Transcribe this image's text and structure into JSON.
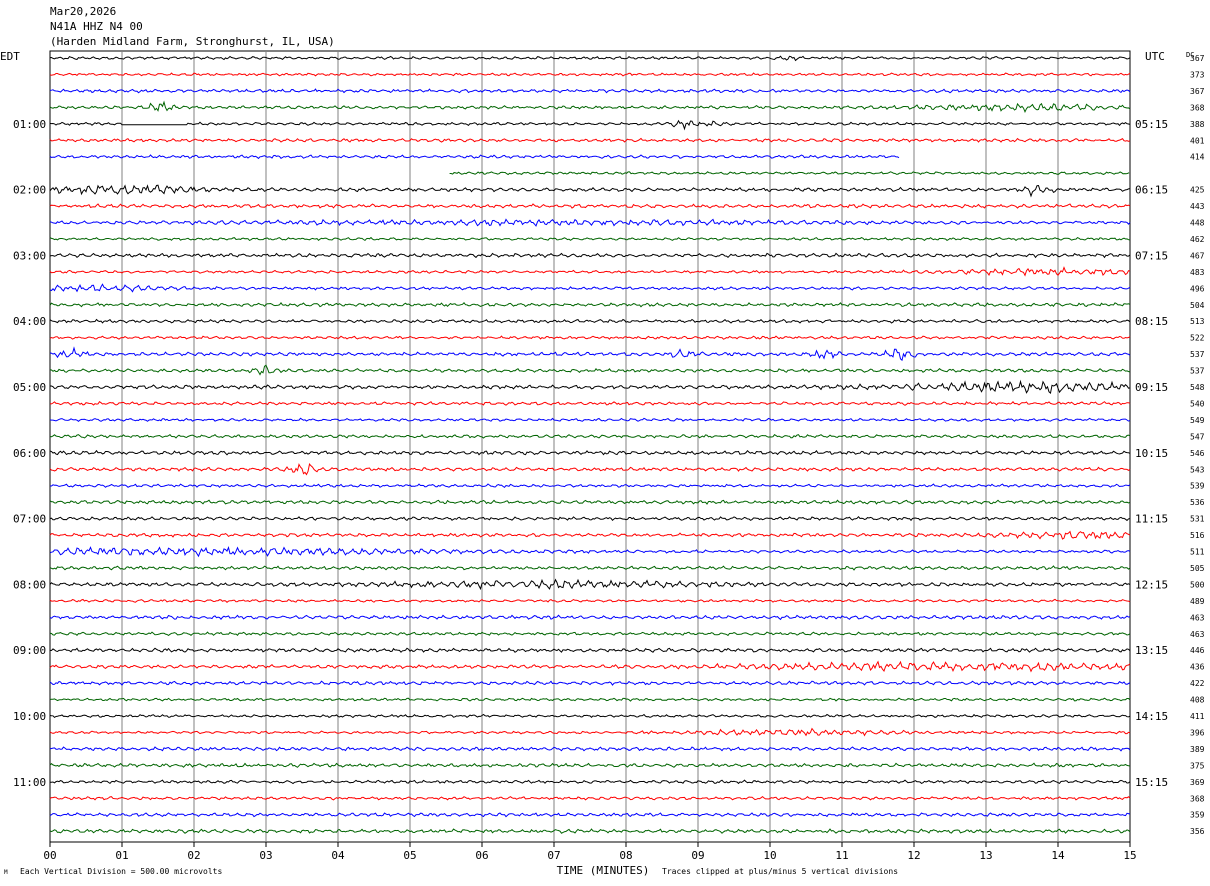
{
  "header": {
    "date": "Mar20,2026",
    "station": "N41A HHZ N4 00",
    "location": "(Harden Midland Farm, Stronghurst, IL, USA)"
  },
  "labels": {
    "left_tz": "EDT",
    "right_tz": "UTC",
    "dc": "DC"
  },
  "footer": {
    "scale": "Each Vertical Division = 500.00 microvolts",
    "clip": "Traces clipped at plus/minus 5 vertical divisions",
    "mark": "M"
  },
  "chart_data": {
    "type": "line",
    "title": "",
    "xlabel": "TIME (MINUTES)",
    "ylabel": "",
    "x_ticks": [
      "00",
      "01",
      "02",
      "03",
      "04",
      "05",
      "06",
      "07",
      "08",
      "09",
      "10",
      "11",
      "12",
      "13",
      "14",
      "15"
    ],
    "xlim": [
      0,
      15
    ],
    "left_hour_labels": [
      "01:00",
      "02:00",
      "03:00",
      "04:00",
      "05:00",
      "06:00",
      "07:00",
      "08:00",
      "09:00",
      "10:00",
      "11:00"
    ],
    "right_hour_labels": [
      "05:15",
      "06:15",
      "07:15",
      "08:15",
      "09:15",
      "10:15",
      "11:15",
      "12:15",
      "13:15",
      "14:15",
      "15:15"
    ],
    "dc_offsets": [
      367,
      373,
      367,
      368,
      388,
      401,
      414,
      null,
      425,
      443,
      448,
      462,
      467,
      483,
      496,
      504,
      513,
      522,
      537,
      537,
      548,
      540,
      549,
      547,
      546,
      543,
      539,
      536,
      531,
      516,
      511,
      505,
      500,
      489,
      463,
      463,
      446,
      436,
      422,
      408,
      411,
      396,
      389,
      375,
      369,
      368,
      359,
      356
    ],
    "trace_colors": [
      "#000000",
      "#ff0000",
      "#0000ff",
      "#006400"
    ],
    "trace_count": 48,
    "minutes_per_trace": 15,
    "data_gap": {
      "trace": 6,
      "end_minute": 11.8,
      "resume_trace": 7,
      "start_minute": 5.55
    },
    "flat_segment": {
      "trace": 4,
      "start_minute": 1.0,
      "end_minute": 1.9
    },
    "events": [
      {
        "trace": 0,
        "minute": 10.25,
        "strength": 1.6
      },
      {
        "trace": 3,
        "minute": 1.55,
        "strength": 3.0
      },
      {
        "trace": 3,
        "minute": 13.5,
        "strength": 1.5,
        "width": 1.8
      },
      {
        "trace": 4,
        "minute": 8.8,
        "strength": 3.0
      },
      {
        "trace": 4,
        "minute": 9.25,
        "strength": 1.5
      },
      {
        "trace": 8,
        "minute": 0.9,
        "strength": 1.8,
        "width": 1.6
      },
      {
        "trace": 8,
        "minute": 13.7,
        "strength": 2.5
      },
      {
        "trace": 10,
        "minute": 7.0,
        "strength": 1.4,
        "width": 6.0
      },
      {
        "trace": 13,
        "minute": 14.0,
        "strength": 1.8,
        "width": 2.0
      },
      {
        "trace": 14,
        "minute": 0.5,
        "strength": 1.6,
        "width": 1.5
      },
      {
        "trace": 18,
        "minute": 0.3,
        "strength": 2.0
      },
      {
        "trace": 18,
        "minute": 8.8,
        "strength": 2.0
      },
      {
        "trace": 18,
        "minute": 10.7,
        "strength": 2.8
      },
      {
        "trace": 18,
        "minute": 11.8,
        "strength": 3.5
      },
      {
        "trace": 19,
        "minute": 3.0,
        "strength": 2.5
      },
      {
        "trace": 20,
        "minute": 13.5,
        "strength": 2.2,
        "width": 2.5
      },
      {
        "trace": 25,
        "minute": 3.5,
        "strength": 3.0
      },
      {
        "trace": 29,
        "minute": 14.5,
        "strength": 1.5,
        "width": 1.6
      },
      {
        "trace": 30,
        "minute": 2.0,
        "strength": 2.0,
        "width": 5.0
      },
      {
        "trace": 32,
        "minute": 7.0,
        "strength": 1.6,
        "width": 3.0
      },
      {
        "trace": 37,
        "minute": 12.5,
        "strength": 1.8,
        "width": 4.0
      },
      {
        "trace": 41,
        "minute": 10.3,
        "strength": 1.8,
        "width": 2.0
      }
    ]
  }
}
